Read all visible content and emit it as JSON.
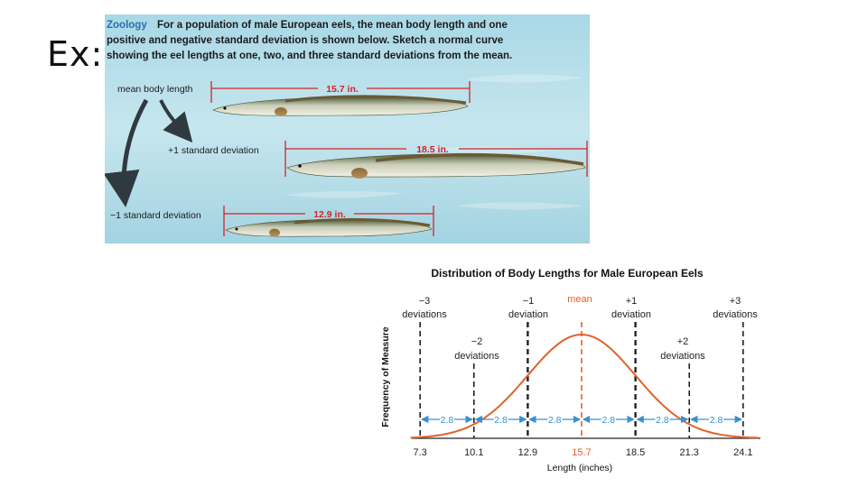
{
  "slide": {
    "label": "Ex:"
  },
  "problem": {
    "heading": "Zoology",
    "line1": "For a population of male European eels, the mean body length and one",
    "line2": "positive and negative standard deviation is shown below. Sketch a normal curve",
    "line3": "showing the eel lengths at one, two, and three standard deviations from the mean.",
    "mean_label": "mean body length",
    "plus_label": "+1 standard deviation",
    "minus_label": "−1 standard deviation",
    "mean_value": "15.7 in.",
    "plus_value": "18.5 in.",
    "minus_value": "12.9 in.",
    "colors": {
      "heading": "#2a6fb0",
      "measure": "#d2232a",
      "water": "#bfe3ee"
    }
  },
  "chart_data": {
    "type": "line",
    "title": "Distribution of Body Lengths for Male European Eels",
    "xlabel": "Length (inches)",
    "ylabel": "Frequency of Measure",
    "mean": 15.7,
    "sd": 2.8,
    "x_ticks": [
      "7.3",
      "10.1",
      "12.9",
      "15.7",
      "18.5",
      "21.3",
      "24.1"
    ],
    "x_values": [
      7.3,
      10.1,
      12.9,
      15.7,
      18.5,
      21.3,
      24.1
    ],
    "xlim": [
      6.4,
      25.0
    ],
    "interval_labels": [
      "2.8",
      "2.8",
      "2.8",
      "2.8",
      "2.8",
      "2.8"
    ],
    "deviation_labels": {
      "m3_num": "−3",
      "m3_word": "deviations",
      "m2_num": "−2",
      "m2_word": "deviations",
      "m1_num": "−1",
      "m1_word": "deviation",
      "mean": "mean",
      "p1_num": "+1",
      "p1_word": "deviation",
      "p2_num": "+2",
      "p2_word": "deviations",
      "p3_num": "+3",
      "p3_word": "deviations"
    },
    "colors": {
      "curve": "#e0622a",
      "arrow": "#3a8fd0",
      "mean_line": "#e0622a",
      "axis": "#222222"
    }
  }
}
